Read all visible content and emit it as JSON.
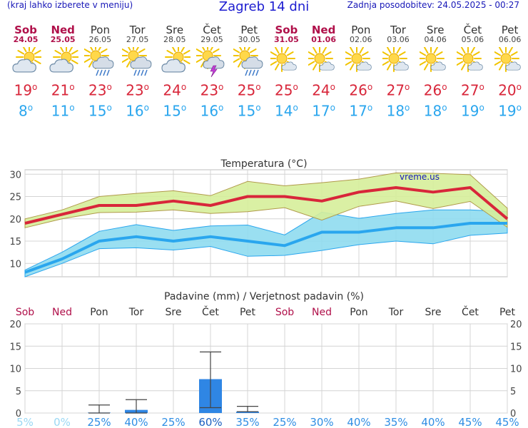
{
  "header": {
    "menu_hint": "(kraj lahko izberete v meniju)",
    "title": "Zagreb 14 dni",
    "updated": "Zadnja posodobitev: 24.05.2025 - 00:27"
  },
  "days": [
    {
      "name": "Sob",
      "date": "24.05",
      "weekend": true,
      "icon": "partly-cloudy-icon",
      "tmax": "19",
      "tmin": "8"
    },
    {
      "name": "Ned",
      "date": "25.05",
      "weekend": true,
      "icon": "partly-cloudy-icon",
      "tmax": "21",
      "tmin": "11"
    },
    {
      "name": "Pon",
      "date": "26.05",
      "weekend": false,
      "icon": "sun-cloud-rain-icon",
      "tmax": "23",
      "tmin": "15"
    },
    {
      "name": "Tor",
      "date": "27.05",
      "weekend": false,
      "icon": "sun-cloud-rain-icon",
      "tmax": "23",
      "tmin": "16"
    },
    {
      "name": "Sre",
      "date": "28.05",
      "weekend": false,
      "icon": "partly-cloudy-icon",
      "tmax": "24",
      "tmin": "15"
    },
    {
      "name": "Čet",
      "date": "29.05",
      "weekend": false,
      "icon": "thunderstorm-icon",
      "tmax": "23",
      "tmin": "16"
    },
    {
      "name": "Pet",
      "date": "30.05",
      "weekend": false,
      "icon": "sun-cloud-rain-icon",
      "tmax": "25",
      "tmin": "15"
    },
    {
      "name": "Sob",
      "date": "31.05",
      "weekend": true,
      "icon": "sun-small-cloud-icon",
      "tmax": "25",
      "tmin": "14"
    },
    {
      "name": "Ned",
      "date": "01.06",
      "weekend": true,
      "icon": "sun-small-cloud-icon",
      "tmax": "24",
      "tmin": "17"
    },
    {
      "name": "Pon",
      "date": "02.06",
      "weekend": false,
      "icon": "sun-small-cloud-icon",
      "tmax": "26",
      "tmin": "17"
    },
    {
      "name": "Tor",
      "date": "03.06",
      "weekend": false,
      "icon": "sun-small-cloud-icon",
      "tmax": "27",
      "tmin": "18"
    },
    {
      "name": "Sre",
      "date": "04.06",
      "weekend": false,
      "icon": "sun-small-cloud-icon",
      "tmax": "26",
      "tmin": "18"
    },
    {
      "name": "Čet",
      "date": "05.06",
      "weekend": false,
      "icon": "sun-small-cloud-icon",
      "tmax": "27",
      "tmin": "19"
    },
    {
      "name": "Pet",
      "date": "06.06",
      "weekend": false,
      "icon": "sun-small-cloud-icon",
      "tmax": "20",
      "tmin": "19"
    }
  ],
  "colors": {
    "max_line": "#d8263a",
    "min_line": "#2aa6ee",
    "max_band": "#d6ee9a",
    "min_band": "#8fdcf0",
    "precip_bar": "#2f86e4",
    "weekend": "#b0104a"
  },
  "chart_data": [
    {
      "type": "line",
      "title": "Temperatura (°C)",
      "watermark": "vreme.us",
      "categories": [
        "24.05",
        "25.05",
        "26.05",
        "27.05",
        "28.05",
        "29.05",
        "30.05",
        "31.05",
        "01.06",
        "02.06",
        "03.06",
        "04.06",
        "05.06",
        "06.06"
      ],
      "ylim": [
        7,
        31
      ],
      "yticks": [
        10,
        15,
        20,
        25,
        30
      ],
      "grid": true,
      "series": [
        {
          "role": "max",
          "values": [
            19,
            21,
            23,
            23,
            24,
            23,
            25,
            25,
            24,
            26,
            27,
            26,
            27,
            20
          ]
        },
        {
          "role": "max_upper",
          "values": [
            20,
            22,
            25,
            25.7,
            26.3,
            25.2,
            28.4,
            27.4,
            28.1,
            28.9,
            30.3,
            30.2,
            29.9,
            22.4
          ]
        },
        {
          "role": "max_lower",
          "values": [
            18,
            20,
            21.4,
            21.5,
            22,
            21.2,
            21.6,
            22.5,
            19.7,
            22.8,
            24,
            22.3,
            23.9,
            18.1
          ]
        },
        {
          "role": "min",
          "values": [
            8,
            11,
            15,
            16,
            15,
            16,
            15,
            14,
            17,
            17,
            18,
            18,
            19,
            19
          ]
        },
        {
          "role": "min_upper",
          "values": [
            8.5,
            12.5,
            17.2,
            18.7,
            17.4,
            18.4,
            18.6,
            16.4,
            21.5,
            20.1,
            21.2,
            22,
            22,
            21.6
          ]
        },
        {
          "role": "min_lower",
          "values": [
            7,
            10,
            13.3,
            13.5,
            13,
            13.8,
            11.6,
            11.8,
            12.9,
            14.2,
            15,
            14.4,
            16.3,
            16.8
          ]
        }
      ]
    },
    {
      "type": "bar",
      "title": "Padavine (mm) / Verjetnost padavin (%)",
      "categories": [
        "Sob",
        "Ned",
        "Pon",
        "Tor",
        "Sre",
        "Čet",
        "Pet",
        "Sob",
        "Ned",
        "Pon",
        "Tor",
        "Sre",
        "Čet",
        "Pet"
      ],
      "weekend": [
        true,
        true,
        false,
        false,
        false,
        false,
        false,
        true,
        true,
        false,
        false,
        false,
        false,
        false
      ],
      "ylim": [
        0,
        20
      ],
      "yticks": [
        0,
        5,
        10,
        15,
        20
      ],
      "values": [
        0,
        0,
        0.1,
        0.7,
        0,
        7.6,
        0.3,
        0,
        0,
        0,
        0,
        0,
        0,
        0
      ],
      "error_high": [
        null,
        null,
        1.8,
        3.0,
        null,
        13.7,
        1.5,
        null,
        null,
        null,
        null,
        null,
        null,
        null
      ],
      "error_low": [
        null,
        null,
        0,
        0,
        null,
        1.2,
        0.3,
        null,
        null,
        null,
        null,
        null,
        null,
        null
      ],
      "probability": [
        "5%",
        "0%",
        "25%",
        "40%",
        "25%",
        "60%",
        "35%",
        "25%",
        "30%",
        "40%",
        "35%",
        "40%",
        "45%",
        "45%"
      ]
    }
  ]
}
